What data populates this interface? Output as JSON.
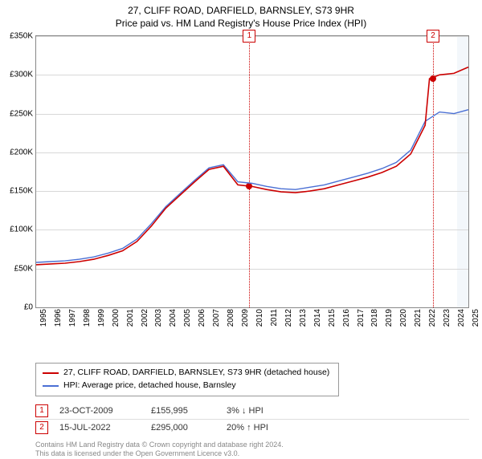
{
  "title": {
    "line1": "27, CLIFF ROAD, DARFIELD, BARNSLEY, S73 9HR",
    "line2": "Price paid vs. HM Land Registry's House Price Index (HPI)"
  },
  "chart": {
    "type": "line",
    "ylim": [
      0,
      350000
    ],
    "xlim_years": [
      1995,
      2025
    ],
    "ytick_step": 50000,
    "ytick_labels": [
      "£0",
      "£50K",
      "£100K",
      "£150K",
      "£200K",
      "£250K",
      "£300K",
      "£350K"
    ],
    "xtick_years": [
      1995,
      1996,
      1997,
      1998,
      1999,
      2000,
      2001,
      2002,
      2003,
      2004,
      2005,
      2006,
      2007,
      2008,
      2009,
      2010,
      2011,
      2012,
      2013,
      2014,
      2015,
      2016,
      2017,
      2018,
      2019,
      2020,
      2021,
      2022,
      2023,
      2024,
      2025
    ],
    "series": [
      {
        "name": "subject",
        "label": "27, CLIFF ROAD, DARFIELD, BARNSLEY, S73 9HR (detached house)",
        "color": "#cc0000",
        "line_width": 1.6,
        "data_years": [
          1995,
          1996,
          1997,
          1998,
          1999,
          2000,
          2001,
          2002,
          2003,
          2004,
          2005,
          2006,
          2007,
          2008,
          2009,
          2010,
          2011,
          2012,
          2013,
          2014,
          2015,
          2016,
          2017,
          2018,
          2019,
          2020,
          2021,
          2022,
          2022.3,
          2023,
          2024,
          2025
        ],
        "data_values": [
          55000,
          56000,
          57000,
          59000,
          62000,
          67000,
          73000,
          85000,
          105000,
          128000,
          145000,
          162000,
          178000,
          182000,
          158000,
          155995,
          152000,
          149000,
          148000,
          150000,
          153000,
          158000,
          163000,
          168000,
          174000,
          182000,
          198000,
          235000,
          295000,
          300000,
          302000,
          310000
        ]
      },
      {
        "name": "hpi",
        "label": "HPI: Average price, detached house, Barnsley",
        "color": "#4a6fd4",
        "line_width": 1.4,
        "data_years": [
          1995,
          1996,
          1997,
          1998,
          1999,
          2000,
          2001,
          2002,
          2003,
          2004,
          2005,
          2006,
          2007,
          2008,
          2009,
          2010,
          2011,
          2012,
          2013,
          2014,
          2015,
          2016,
          2017,
          2018,
          2019,
          2020,
          2021,
          2022,
          2023,
          2024,
          2025
        ],
        "data_values": [
          58000,
          59000,
          60000,
          62000,
          65000,
          70000,
          76000,
          88000,
          108000,
          130000,
          147000,
          164000,
          180000,
          184000,
          162000,
          160000,
          156000,
          153000,
          152000,
          155000,
          158000,
          163000,
          168000,
          173000,
          179000,
          187000,
          203000,
          240000,
          252000,
          250000,
          255000
        ]
      }
    ],
    "events": [
      {
        "id": "1",
        "year": 2009.8,
        "value": 155995
      },
      {
        "id": "2",
        "year": 2022.55,
        "value": 295000
      }
    ],
    "shade_from_year": 2024.2,
    "background_color": "#ffffff",
    "grid_color": "#d8d8d8",
    "border_color": "#888888"
  },
  "sales": [
    {
      "id": "1",
      "date": "23-OCT-2009",
      "price": "£155,995",
      "delta": "3% ↓ HPI"
    },
    {
      "id": "2",
      "date": "15-JUL-2022",
      "price": "£295,000",
      "delta": "20% ↑ HPI"
    }
  ],
  "footer": {
    "line1": "Contains HM Land Registry data © Crown copyright and database right 2024.",
    "line2": "This data is licensed under the Open Government Licence v3.0."
  }
}
